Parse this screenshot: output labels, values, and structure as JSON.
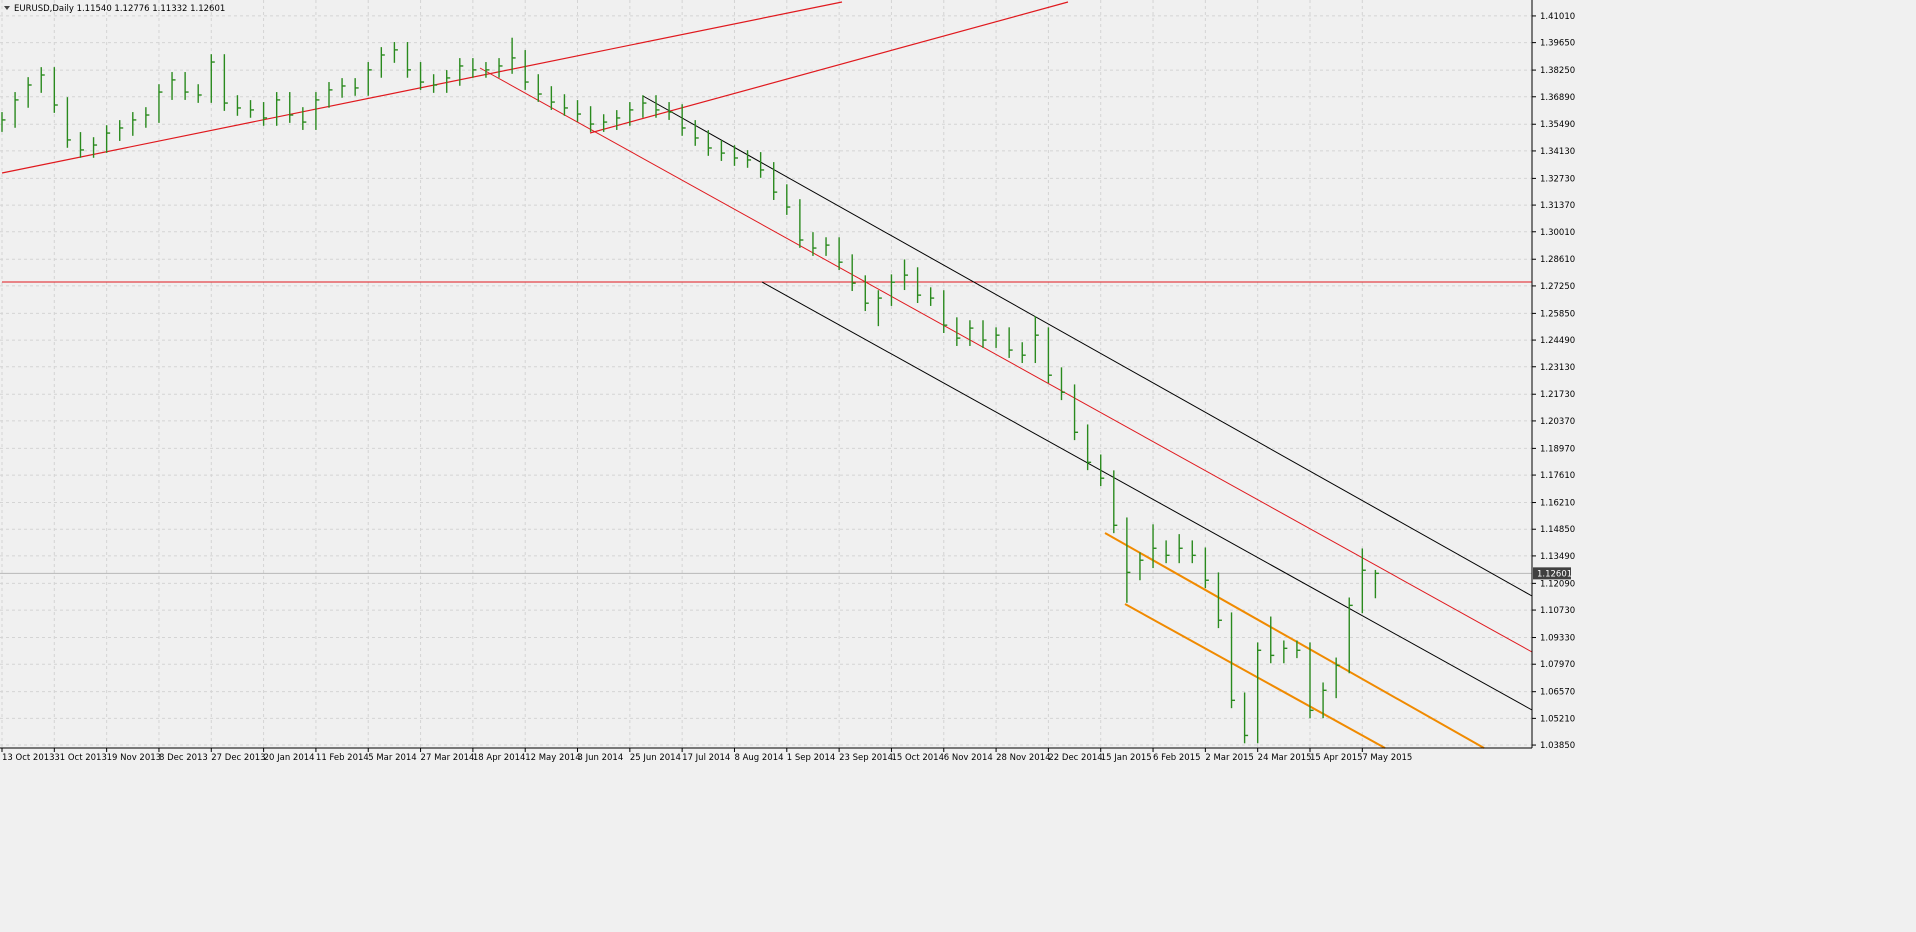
{
  "chart_data": {
    "type": "hlc",
    "title": "EURUSD,Daily  1.11540 1.12776 1.11332 1.12601",
    "color": "#2a8a1e",
    "grid": true,
    "categories": [
      "13 Oct 2013",
      null,
      null,
      null,
      "31 Oct 2013",
      null,
      null,
      null,
      "19 Nov 2013",
      null,
      null,
      null,
      "8 Dec 2013",
      null,
      null,
      null,
      "27 Dec 2013",
      null,
      null,
      null,
      "20 Jan 2014",
      null,
      null,
      null,
      "11 Feb 2014",
      null,
      null,
      null,
      "5 Mar 2014",
      null,
      null,
      null,
      "27 Mar 2014",
      null,
      null,
      null,
      "18 Apr 2014",
      null,
      null,
      null,
      "12 May 2014",
      null,
      null,
      null,
      "3 Jun 2014",
      null,
      null,
      null,
      "25 Jun 2014",
      null,
      null,
      null,
      "17 Jul 2014",
      null,
      null,
      null,
      "8 Aug 2014",
      null,
      null,
      null,
      "1 Sep 2014",
      null,
      null,
      null,
      "23 Sep 2014",
      null,
      null,
      null,
      "15 Oct 2014",
      null,
      null,
      null,
      "6 Nov 2014",
      null,
      null,
      null,
      "28 Nov 2014",
      null,
      null,
      null,
      "22 Dec 2014",
      null,
      null,
      null,
      "15 Jan 2015",
      null,
      null,
      null,
      "6 Feb 2015",
      null,
      null,
      null,
      "2 Mar 2015",
      null,
      null,
      null,
      "24 Mar 2015",
      null,
      null,
      null,
      "15 Apr 2015",
      null,
      null,
      null,
      "7 May 2015",
      null
    ],
    "high": [
      1.3611,
      1.3713,
      1.3789,
      1.384,
      1.384,
      1.3687,
      1.3509,
      1.3483,
      1.3544,
      1.357,
      1.3611,
      1.3636,
      1.3753,
      1.3815,
      1.3815,
      1.3753,
      1.3906,
      1.3906,
      1.3697,
      1.3672,
      1.3662,
      1.3713,
      1.3713,
      1.3636,
      1.3713,
      1.3764,
      1.3784,
      1.3784,
      1.3866,
      1.3942,
      1.3968,
      1.3968,
      1.3866,
      1.3804,
      1.3825,
      1.3886,
      1.3886,
      1.3866,
      1.3886,
      1.399,
      1.3927,
      1.3804,
      1.3743,
      1.3702,
      1.3672,
      1.3641,
      1.36,
      1.3621,
      1.3662,
      1.3697,
      1.3697,
      1.3662,
      1.3651,
      1.357,
      1.3519,
      1.3468,
      1.3442,
      1.3417,
      1.3407,
      1.3356,
      1.3243,
      1.3167,
      1.2999,
      1.2973,
      1.2973,
      1.2886,
      1.2779,
      1.2703,
      1.2784,
      1.286,
      1.282,
      1.2718,
      1.2703,
      1.2565,
      1.255,
      1.255,
      1.2514,
      1.2514,
      1.2438,
      1.257,
      1.2514,
      1.231,
      1.2223,
      1.2019,
      1.1866,
      1.1785,
      1.1545,
      1.1367,
      1.151,
      1.1428,
      1.146,
      1.1428,
      1.1392,
      1.1265,
      1.1061,
      1.0653,
      1.0908,
      1.104,
      1.0918,
      1.0918,
      1.0908,
      1.0704,
      1.0831,
      1.1137,
      1.1387,
      1.12776
    ],
    "low": [
      1.351,
      1.3531,
      1.3633,
      1.3709,
      1.3607,
      1.3429,
      1.3378,
      1.3378,
      1.3403,
      1.3464,
      1.349,
      1.3531,
      1.3556,
      1.3673,
      1.3673,
      1.3658,
      1.3658,
      1.3617,
      1.3592,
      1.3582,
      1.3541,
      1.3541,
      1.3556,
      1.352,
      1.352,
      1.3633,
      1.3684,
      1.3694,
      1.3694,
      1.3786,
      1.3862,
      1.3786,
      1.3724,
      1.3709,
      1.3709,
      1.3745,
      1.3786,
      1.3786,
      1.3786,
      1.3806,
      1.3724,
      1.3663,
      1.3622,
      1.3592,
      1.3561,
      1.351,
      1.351,
      1.352,
      1.3541,
      1.3582,
      1.3582,
      1.3571,
      1.349,
      1.3439,
      1.3388,
      1.3362,
      1.3337,
      1.3327,
      1.3276,
      1.3163,
      1.3087,
      1.2919,
      1.2878,
      1.2878,
      1.2806,
      1.2699,
      1.2597,
      1.252,
      1.2623,
      1.2704,
      1.2638,
      1.2623,
      1.2485,
      1.2419,
      1.2419,
      1.2409,
      1.2409,
      1.2358,
      1.2332,
      1.2332,
      1.223,
      1.2143,
      1.1939,
      1.1786,
      1.1705,
      1.1465,
      1.111,
      1.1225,
      1.1287,
      1.1312,
      1.1312,
      1.1312,
      1.1185,
      1.0981,
      1.0573,
      1.0394,
      1.0394,
      1.0802,
      1.0802,
      1.0828,
      1.0522,
      1.0522,
      1.0624,
      1.0751,
      1.1057,
      1.11332
    ],
    "close": [
      1.3571,
      1.3673,
      1.3749,
      1.38,
      1.3647,
      1.3469,
      1.3418,
      1.3443,
      1.3504,
      1.353,
      1.3571,
      1.3596,
      1.3713,
      1.3775,
      1.3713,
      1.3698,
      1.3866,
      1.3657,
      1.3632,
      1.3622,
      1.3581,
      1.3673,
      1.3596,
      1.356,
      1.3673,
      1.3724,
      1.3744,
      1.3734,
      1.3826,
      1.3902,
      1.3928,
      1.3826,
      1.3764,
      1.3749,
      1.3785,
      1.3846,
      1.3826,
      1.3826,
      1.3846,
      1.3887,
      1.3764,
      1.3703,
      1.3662,
      1.3632,
      1.3601,
      1.355,
      1.356,
      1.3581,
      1.3622,
      1.3657,
      1.3622,
      1.3611,
      1.353,
      1.3479,
      1.3428,
      1.3402,
      1.3377,
      1.3367,
      1.3316,
      1.3203,
      1.3127,
      1.2959,
      1.2918,
      1.2933,
      1.2846,
      1.2739,
      1.2637,
      1.2663,
      1.2744,
      1.278,
      1.2678,
      1.2663,
      1.2525,
      1.2459,
      1.251,
      1.2449,
      1.2474,
      1.2398,
      1.2372,
      1.2474,
      1.227,
      1.2183,
      1.1979,
      1.1826,
      1.1745,
      1.1505,
      1.1265,
      1.1327,
      1.1388,
      1.1352,
      1.1388,
      1.1352,
      1.1225,
      1.1021,
      1.0613,
      1.0434,
      1.0868,
      1.0842,
      1.0878,
      1.0868,
      1.0562,
      1.0664,
      1.0791,
      1.1097,
      1.1276,
      1.12601
    ],
    "ylim": [
      1.037,
      1.4172
    ],
    "yticks": [
      {
        "value": 1.4101,
        "label": "1.41010"
      },
      {
        "value": 1.3965,
        "label": "1.39650"
      },
      {
        "value": 1.3825,
        "label": "1.38250"
      },
      {
        "value": 1.3689,
        "label": "1.36890"
      },
      {
        "value": 1.3549,
        "label": "1.35490"
      },
      {
        "value": 1.3413,
        "label": "1.34130"
      },
      {
        "value": 1.3273,
        "label": "1.32730"
      },
      {
        "value": 1.3137,
        "label": "1.31370"
      },
      {
        "value": 1.3001,
        "label": "1.30010"
      },
      {
        "value": 1.2861,
        "label": "1.28610"
      },
      {
        "value": 1.2725,
        "label": "1.27250"
      },
      {
        "value": 1.2585,
        "label": "1.25850"
      },
      {
        "value": 1.2449,
        "label": "1.24490"
      },
      {
        "value": 1.2313,
        "label": "1.23130"
      },
      {
        "value": 1.2173,
        "label": "1.21730"
      },
      {
        "value": 1.2037,
        "label": "1.20370"
      },
      {
        "value": 1.1897,
        "label": "1.18970"
      },
      {
        "value": 1.1761,
        "label": "1.17610"
      },
      {
        "value": 1.1621,
        "label": "1.16210"
      },
      {
        "value": 1.1485,
        "label": "1.14850"
      },
      {
        "value": 1.1349,
        "label": "1.13490"
      },
      {
        "value": 1.1209,
        "label": "1.12090"
      },
      {
        "value": 1.1073,
        "label": "1.10730"
      },
      {
        "value": 1.0933,
        "label": "1.09330"
      },
      {
        "value": 1.0797,
        "label": "1.07970"
      },
      {
        "value": 1.0657,
        "label": "1.06570"
      },
      {
        "value": 1.0521,
        "label": "1.05210"
      },
      {
        "value": 1.0385,
        "label": "1.03850"
      }
    ]
  }
}
